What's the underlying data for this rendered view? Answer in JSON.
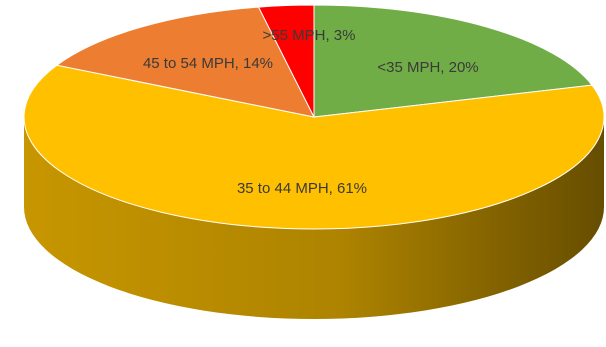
{
  "chart_data": {
    "type": "pie",
    "style": "3d",
    "title": "",
    "slices": [
      {
        "category": "<35 MPH",
        "value": 20,
        "color": "#70ad47",
        "label": "<35 MPH, 20%"
      },
      {
        "category": "35 to 44 MPH",
        "value": 61,
        "color": "#ffc000",
        "label": "35 to 44 MPH, 61%"
      },
      {
        "category": "45 to 54 MPH",
        "value": 14,
        "color": "#ed7d31",
        "label": "45 to 54 MPH, 14%"
      },
      {
        "category": ">55 MPH",
        "value": 3,
        "color": "#ff0000",
        "label": ">55 MPH, 3%"
      }
    ]
  }
}
